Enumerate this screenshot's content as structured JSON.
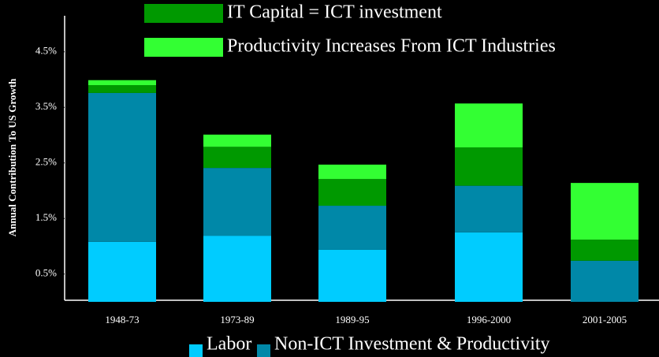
{
  "chart_data": {
    "type": "stacked-bar",
    "ylabel": "Annual Contribution To US Growth",
    "categories": [
      "1948-73",
      "1973-89",
      "1989-95",
      "1996-2000",
      "2001-2005"
    ],
    "series": [
      {
        "name": "Labor",
        "color": "#00ccff",
        "values": [
          1.08,
          1.19,
          0.94,
          1.25,
          0
        ]
      },
      {
        "name": "Non-ICT Investment & Productivity",
        "color": "#0088a8",
        "values": [
          2.68,
          1.22,
          0.79,
          0.84,
          0.74
        ]
      },
      {
        "name": "IT Capital = ICT investment",
        "color": "#009900",
        "values": [
          0.14,
          0.38,
          0.48,
          0.69,
          0.38
        ]
      },
      {
        "name": "Productivity Increases From ICT Industries",
        "color": "#33ff33",
        "values": [
          0.09,
          0.22,
          0.26,
          0.79,
          1.02
        ]
      }
    ],
    "ylim": [
      0,
      5
    ],
    "yticks": [
      {
        "value": 0.5,
        "label": "0.5%"
      },
      {
        "value": 1.5,
        "label": "1.5%"
      },
      {
        "value": 2.5,
        "label": "2.5%"
      },
      {
        "value": 3.5,
        "label": "3.5%"
      },
      {
        "value": 4.5,
        "label": "4.5%"
      }
    ]
  }
}
